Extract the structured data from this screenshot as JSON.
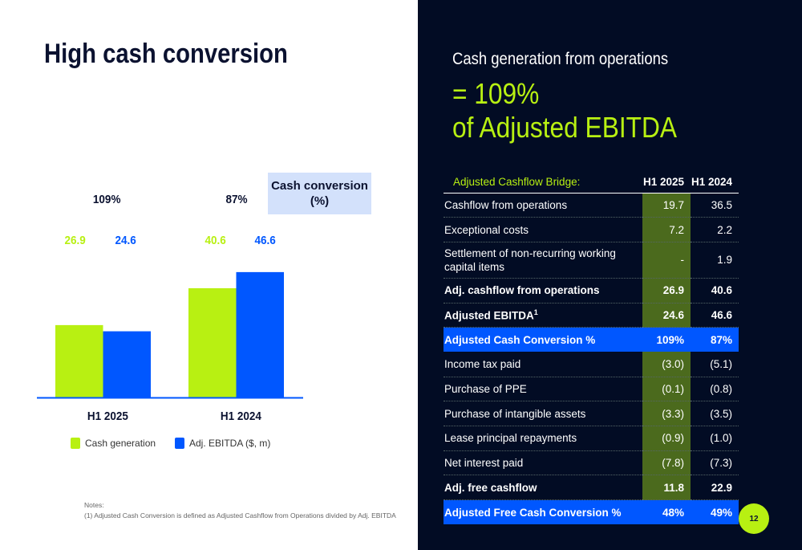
{
  "title": "High cash conversion",
  "chart_data": {
    "type": "bar",
    "categories": [
      "H1 2025",
      "H1 2024"
    ],
    "series": [
      {
        "name": "Cash generation",
        "color": "#b8f012",
        "values": [
          26.9,
          40.6
        ]
      },
      {
        "name": "Adj. EBITDA ($, m)",
        "color": "#0057ff",
        "values": [
          24.6,
          46.6
        ]
      }
    ],
    "cash_conversion": [
      "109%",
      "87%"
    ],
    "cash_conversion_label_line1": "Cash conversion",
    "cash_conversion_label_line2": "(%)",
    "value_labels": [
      "26.9",
      "24.6",
      "40.6",
      "46.6"
    ]
  },
  "notes": {
    "heading": "Notes:",
    "text": "(1) Adjusted Cash Conversion is defined as Adjusted Cashflow from Operations divided by Adj. EBITDA"
  },
  "right": {
    "subtitle": "Cash generation from operations",
    "line1": "= 109%",
    "line2": "of Adjusted EBITDA"
  },
  "table": {
    "header": [
      "Adjusted Cashflow Bridge:",
      "H1 2025",
      "H1 2024"
    ],
    "rows": [
      {
        "label": "Cashflow from operations",
        "a": "19.7",
        "b": "36.5"
      },
      {
        "label": "Exceptional costs",
        "a": "7.2",
        "b": "2.2"
      },
      {
        "label": "Settlement of non-recurring working capital items",
        "a": "-",
        "b": "1.9"
      },
      {
        "label": "Adj. cashflow from operations",
        "a": "26.9",
        "b": "40.6"
      },
      {
        "label": "Adjusted EBITDA",
        "sup": "1",
        "a": "24.6",
        "b": "46.6"
      },
      {
        "label": "Adjusted Cash Conversion %",
        "a": "109%",
        "b": "87%"
      },
      {
        "label": "Income tax paid",
        "a": "(3.0)",
        "b": "(5.1)"
      },
      {
        "label": "Purchase of PPE",
        "a": "(0.1)",
        "b": "(0.8)"
      },
      {
        "label": "Purchase of intangible assets",
        "a": "(3.3)",
        "b": "(3.5)"
      },
      {
        "label": "Lease principal repayments",
        "a": "(0.9)",
        "b": "(1.0)"
      },
      {
        "label": "Net interest paid",
        "a": "(7.8)",
        "b": "(7.3)"
      },
      {
        "label": "Adj. free cashflow",
        "a": "11.8",
        "b": "22.9"
      },
      {
        "label": "Adjusted Free Cash Conversion %",
        "a": "48%",
        "b": "49%"
      }
    ]
  },
  "page_number": "12"
}
